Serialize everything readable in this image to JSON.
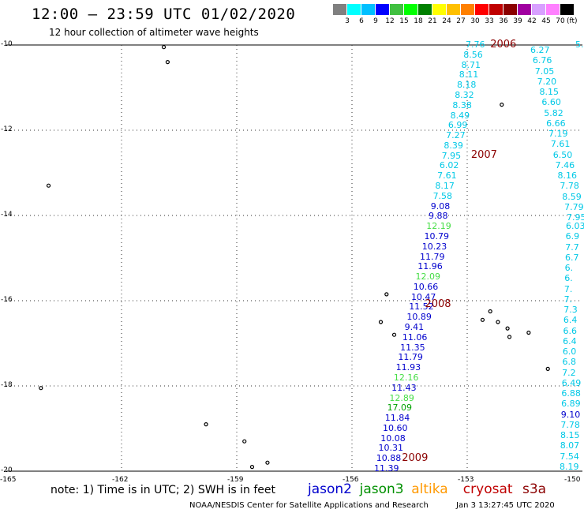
{
  "header": {
    "title": "12:00 – 23:59 UTC 01/02/2020",
    "subtitle": "12 hour collection of altimeter wave heights"
  },
  "colorbar": {
    "ticks": [
      "3",
      "6",
      "9",
      "12",
      "15",
      "18",
      "21",
      "24",
      "27",
      "30",
      "33",
      "36",
      "39",
      "42",
      "45",
      "70"
    ],
    "units": "(ft)",
    "colors": [
      "#808080",
      "#00ffff",
      "#00c0ff",
      "#0000ff",
      "#40c040",
      "#00ff00",
      "#008000",
      "#ffff00",
      "#ffc000",
      "#ff8000",
      "#ff0000",
      "#c00000",
      "#8b0000",
      "#a000a0",
      "#d8a0ff",
      "#ff80ff",
      "#000000"
    ]
  },
  "axes": {
    "lat_labels": [
      "-10",
      "-12",
      "-14",
      "-16",
      "-18",
      "-20"
    ],
    "lon_labels": [
      "-165",
      "-162",
      "-159",
      "-156",
      "-153",
      "-150"
    ]
  },
  "track_colors": {
    "cyan": "#00c8e6",
    "blue": "#0000cd",
    "green": "#44dd44",
    "darkgreen": "#00a000"
  },
  "tracks": {
    "central": [
      {
        "v": "7.76",
        "c": "cyan"
      },
      {
        "v": "8.56",
        "c": "cyan"
      },
      {
        "v": "8.71",
        "c": "cyan"
      },
      {
        "v": "8.11",
        "c": "cyan"
      },
      {
        "v": "8.18",
        "c": "cyan"
      },
      {
        "v": "8.32",
        "c": "cyan"
      },
      {
        "v": "8.38",
        "c": "cyan"
      },
      {
        "v": "8.49",
        "c": "cyan"
      },
      {
        "v": "6.99",
        "c": "cyan"
      },
      {
        "v": "7.27",
        "c": "cyan"
      },
      {
        "v": "8.39",
        "c": "cyan"
      },
      {
        "v": "7.95",
        "c": "cyan"
      },
      {
        "v": "6.02",
        "c": "cyan"
      },
      {
        "v": "7.61",
        "c": "cyan"
      },
      {
        "v": "8.17",
        "c": "cyan"
      },
      {
        "v": "7.58",
        "c": "cyan"
      },
      {
        "v": "9.08",
        "c": "blue"
      },
      {
        "v": "9.88",
        "c": "blue"
      },
      {
        "v": "12.19",
        "c": "green"
      },
      {
        "v": "10.79",
        "c": "blue"
      },
      {
        "v": "10.23",
        "c": "blue"
      },
      {
        "v": "11.79",
        "c": "blue"
      },
      {
        "v": "11.96",
        "c": "blue"
      },
      {
        "v": "12.09",
        "c": "green"
      },
      {
        "v": "10.66",
        "c": "blue"
      },
      {
        "v": "10.47",
        "c": "blue"
      },
      {
        "v": "11.52",
        "c": "blue"
      },
      {
        "v": "10.89",
        "c": "blue"
      },
      {
        "v": "9.41",
        "c": "blue"
      },
      {
        "v": "11.06",
        "c": "blue"
      },
      {
        "v": "11.35",
        "c": "blue"
      },
      {
        "v": "11.79",
        "c": "blue"
      },
      {
        "v": "11.93",
        "c": "blue"
      },
      {
        "v": "12.16",
        "c": "green"
      },
      {
        "v": "11.43",
        "c": "blue"
      },
      {
        "v": "12.89",
        "c": "green"
      },
      {
        "v": "17.09",
        "c": "darkgreen"
      },
      {
        "v": "11.84",
        "c": "blue"
      },
      {
        "v": "10.60",
        "c": "blue"
      },
      {
        "v": "10.08",
        "c": "blue"
      },
      {
        "v": "10.31",
        "c": "blue"
      },
      {
        "v": "10.88",
        "c": "blue"
      },
      {
        "v": "11.39",
        "c": "blue"
      }
    ],
    "east": [
      {
        "v": "6.27",
        "c": "cyan"
      },
      {
        "v": "6.76",
        "c": "cyan"
      },
      {
        "v": "7.05",
        "c": "cyan"
      },
      {
        "v": "7.20",
        "c": "cyan"
      },
      {
        "v": "8.15",
        "c": "cyan"
      },
      {
        "v": "6.60",
        "c": "cyan"
      },
      {
        "v": "5.82",
        "c": "cyan"
      },
      {
        "v": "6.66",
        "c": "cyan"
      },
      {
        "v": "7.19",
        "c": "cyan"
      },
      {
        "v": "7.61",
        "c": "cyan"
      },
      {
        "v": "6.50",
        "c": "cyan"
      },
      {
        "v": "7.46",
        "c": "cyan"
      },
      {
        "v": "8.16",
        "c": "cyan"
      },
      {
        "v": "7.78",
        "c": "cyan"
      },
      {
        "v": "8.59",
        "c": "cyan"
      },
      {
        "v": "7.79",
        "c": "cyan"
      },
      {
        "v": "7.95",
        "c": "cyan"
      }
    ],
    "edge": [
      {
        "v": "6.03",
        "c": "cyan"
      },
      {
        "v": "6.9",
        "c": "cyan"
      },
      {
        "v": "7.7",
        "c": "cyan"
      },
      {
        "v": "6.7",
        "c": "cyan"
      },
      {
        "v": "6.",
        "c": "cyan"
      },
      {
        "v": "6.",
        "c": "cyan"
      },
      {
        "v": "7.",
        "c": "cyan"
      },
      {
        "v": "7.",
        "c": "cyan"
      },
      {
        "v": "7.3",
        "c": "cyan"
      },
      {
        "v": "6.4",
        "c": "cyan"
      },
      {
        "v": "6.6",
        "c": "cyan"
      },
      {
        "v": "6.4",
        "c": "cyan"
      },
      {
        "v": "6.0",
        "c": "cyan"
      },
      {
        "v": "6.8",
        "c": "cyan"
      },
      {
        "v": "7.2",
        "c": "cyan"
      },
      {
        "v": "6.49",
        "c": "cyan"
      },
      {
        "v": "6.88",
        "c": "cyan"
      },
      {
        "v": "6.89",
        "c": "cyan"
      },
      {
        "v": "9.10",
        "c": "blue"
      },
      {
        "v": "7.78",
        "c": "cyan"
      },
      {
        "v": "8.15",
        "c": "cyan"
      },
      {
        "v": "8.07",
        "c": "cyan"
      },
      {
        "v": "7.54",
        "c": "cyan"
      },
      {
        "v": "8.19",
        "c": "cyan"
      }
    ],
    "top_edge": [
      {
        "v": "5.",
        "c": "cyan"
      }
    ]
  },
  "years": [
    {
      "label": "2006",
      "lat": -10.0,
      "lon": -152.4
    },
    {
      "label": "2007",
      "lat": -12.6,
      "lon": -152.9
    },
    {
      "label": "2008",
      "lat": -16.1,
      "lon": -154.1
    },
    {
      "label": "2009",
      "lat": -19.7,
      "lon": -154.7
    }
  ],
  "islands": [
    {
      "lon": -160.9,
      "lat": -10.05
    },
    {
      "lon": -160.8,
      "lat": -10.4
    },
    {
      "lon": -163.9,
      "lat": -13.3
    },
    {
      "lon": -152.1,
      "lat": -11.4
    },
    {
      "lon": -155.1,
      "lat": -15.85
    },
    {
      "lon": -155.25,
      "lat": -16.5
    },
    {
      "lon": -154.9,
      "lat": -16.8
    },
    {
      "lon": -152.4,
      "lat": -16.25
    },
    {
      "lon": -152.6,
      "lat": -16.45
    },
    {
      "lon": -152.2,
      "lat": -16.5
    },
    {
      "lon": -151.95,
      "lat": -16.65
    },
    {
      "lon": -151.9,
      "lat": -16.85
    },
    {
      "lon": -151.4,
      "lat": -16.75
    },
    {
      "lon": -150.9,
      "lat": -17.6
    },
    {
      "lon": -164.1,
      "lat": -18.05
    },
    {
      "lon": -159.8,
      "lat": -18.9
    },
    {
      "lon": -158.8,
      "lat": -19.3
    },
    {
      "lon": -158.6,
      "lat": -19.9
    },
    {
      "lon": -158.2,
      "lat": -19.8
    },
    {
      "lon": -149.8,
      "lat": -10.0
    }
  ],
  "footer": {
    "note": "note:  1) Time is in UTC;  2) SWH is in feet",
    "legend": [
      {
        "name": "jason2",
        "color": "#0000cd"
      },
      {
        "name": "jason3",
        "color": "#009000"
      },
      {
        "name": "altika",
        "color": "#ff9900"
      },
      {
        "name": "cryosat",
        "color": "#c00000"
      },
      {
        "name": "s3a",
        "color": "#8b0000"
      }
    ],
    "credit": "NOAA/NESDIS Center for Satellite Applications and Research",
    "timestamp": "Jan  3 13:27:45 UTC 2020"
  }
}
